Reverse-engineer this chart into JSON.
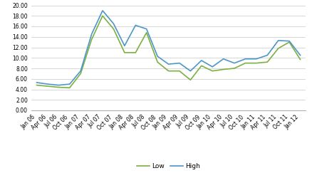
{
  "x_labels": [
    "Jan 06",
    "Apr 06",
    "Jul 06",
    "Oct 06",
    "Jan 07",
    "Apr 07",
    "Jul 07",
    "Oct 07",
    "Jan 08",
    "Apr 08",
    "Jul 08",
    "Oct 08",
    "Jan 09",
    "Apr 09",
    "Jul 09",
    "Oct 09",
    "Jan 10",
    "Apr 10",
    "Jul 10",
    "Oct 10",
    "Jan 11",
    "Apr 11",
    "Jul 11",
    "Oct 11",
    "Jan 12"
  ],
  "low": [
    4.8,
    4.6,
    4.4,
    4.3,
    7.0,
    13.5,
    18.0,
    15.5,
    11.0,
    11.0,
    14.8,
    9.2,
    7.5,
    7.5,
    5.8,
    8.5,
    7.5,
    7.8,
    8.0,
    9.0,
    9.0,
    9.2,
    11.8,
    13.0,
    9.7
  ],
  "high": [
    5.3,
    5.0,
    4.8,
    5.0,
    7.5,
    14.5,
    19.0,
    16.5,
    12.3,
    16.2,
    15.5,
    10.3,
    8.8,
    9.0,
    7.5,
    9.5,
    8.3,
    9.8,
    9.0,
    9.8,
    9.8,
    10.5,
    13.3,
    13.2,
    10.5
  ],
  "low_color": "#7db040",
  "high_color": "#4e96c8",
  "ylim": [
    0,
    20
  ],
  "yticks": [
    0.0,
    2.0,
    4.0,
    6.0,
    8.0,
    10.0,
    12.0,
    14.0,
    16.0,
    18.0,
    20.0
  ],
  "legend_low": "Low",
  "legend_high": "High",
  "bg_color": "#ffffff",
  "grid_color": "#c8c8c8",
  "line_width": 1.2,
  "tick_fontsize": 5.5,
  "legend_fontsize": 6.5
}
